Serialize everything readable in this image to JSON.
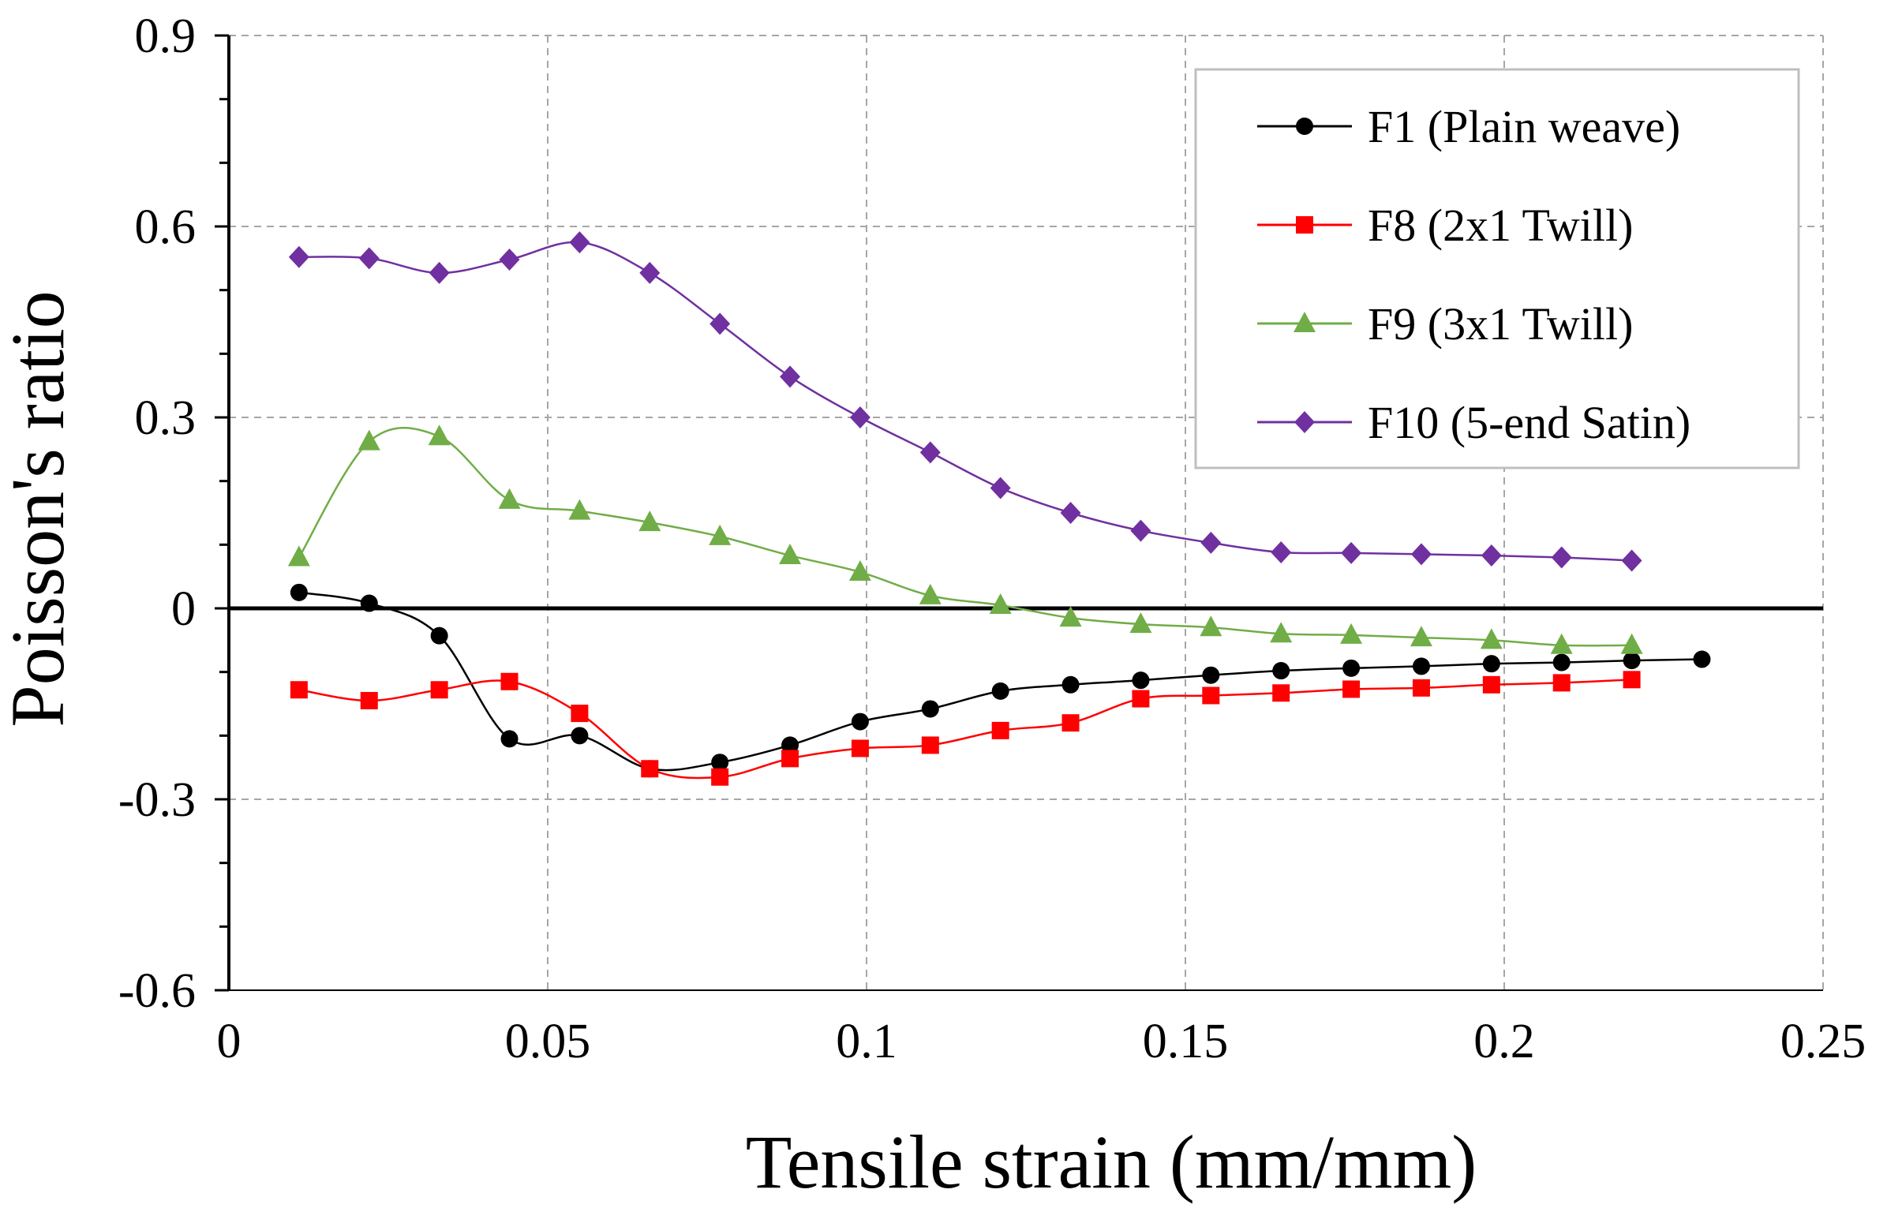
{
  "chart_data": {
    "type": "line",
    "title": "",
    "xlabel": "Tensile strain (mm/mm)",
    "ylabel": "Poisson's ratio",
    "xlim": [
      0,
      0.25
    ],
    "ylim": [
      -0.6,
      0.9
    ],
    "x_ticks": [
      0,
      0.05,
      0.1,
      0.15,
      0.2,
      0.25
    ],
    "x_tick_labels": [
      "0",
      "0.05",
      "0.1",
      "0.15",
      "0.2",
      "0.25"
    ],
    "y_ticks": [
      -0.6,
      -0.3,
      0,
      0.3,
      0.6,
      0.9
    ],
    "y_tick_labels": [
      "-0.6",
      "-0.3",
      "0",
      "0.3",
      "0.6",
      "0.9"
    ],
    "grid": true,
    "legend_position": "top-right",
    "series": [
      {
        "name": "F1 (Plain weave)",
        "color": "#000000",
        "marker": "circle",
        "x": [
          0.011,
          0.022,
          0.033,
          0.044,
          0.055,
          0.066,
          0.077,
          0.088,
          0.099,
          0.11,
          0.121,
          0.132,
          0.143,
          0.154,
          0.165,
          0.176,
          0.187,
          0.198,
          0.209,
          0.22,
          0.231
        ],
        "values": [
          0.025,
          0.008,
          -0.043,
          -0.205,
          -0.2,
          -0.252,
          -0.242,
          -0.215,
          -0.178,
          -0.158,
          -0.13,
          -0.12,
          -0.113,
          -0.105,
          -0.098,
          -0.094,
          -0.091,
          -0.087,
          -0.085,
          -0.082,
          -0.08
        ]
      },
      {
        "name": "F8 (2x1 Twill)",
        "color": "#ff0000",
        "marker": "square",
        "x": [
          0.011,
          0.022,
          0.033,
          0.044,
          0.055,
          0.066,
          0.077,
          0.088,
          0.099,
          0.11,
          0.121,
          0.132,
          0.143,
          0.154,
          0.165,
          0.176,
          0.187,
          0.198,
          0.209,
          0.22
        ],
        "values": [
          -0.128,
          -0.145,
          -0.128,
          -0.115,
          -0.165,
          -0.252,
          -0.265,
          -0.236,
          -0.22,
          -0.215,
          -0.192,
          -0.18,
          -0.142,
          -0.137,
          -0.133,
          -0.127,
          -0.125,
          -0.12,
          -0.117,
          -0.112
        ]
      },
      {
        "name": "F9 (3x1 Twill)",
        "color": "#70ad47",
        "marker": "triangle",
        "x": [
          0.011,
          0.022,
          0.033,
          0.044,
          0.055,
          0.066,
          0.077,
          0.088,
          0.099,
          0.11,
          0.121,
          0.132,
          0.143,
          0.154,
          0.165,
          0.176,
          0.187,
          0.198,
          0.209,
          0.22
        ],
        "values": [
          0.08,
          0.262,
          0.27,
          0.17,
          0.153,
          0.135,
          0.113,
          0.083,
          0.057,
          0.02,
          0.005,
          -0.015,
          -0.025,
          -0.03,
          -0.04,
          -0.042,
          -0.046,
          -0.05,
          -0.058,
          -0.058
        ]
      },
      {
        "name": "F10 (5-end Satin)",
        "color": "#7030a0",
        "marker": "diamond",
        "x": [
          0.011,
          0.022,
          0.033,
          0.044,
          0.055,
          0.066,
          0.077,
          0.088,
          0.099,
          0.11,
          0.121,
          0.132,
          0.143,
          0.154,
          0.165,
          0.176,
          0.187,
          0.198,
          0.209,
          0.22
        ],
        "values": [
          0.552,
          0.55,
          0.527,
          0.548,
          0.575,
          0.527,
          0.447,
          0.364,
          0.3,
          0.245,
          0.189,
          0.15,
          0.122,
          0.103,
          0.088,
          0.087,
          0.085,
          0.083,
          0.08,
          0.075
        ]
      }
    ]
  }
}
